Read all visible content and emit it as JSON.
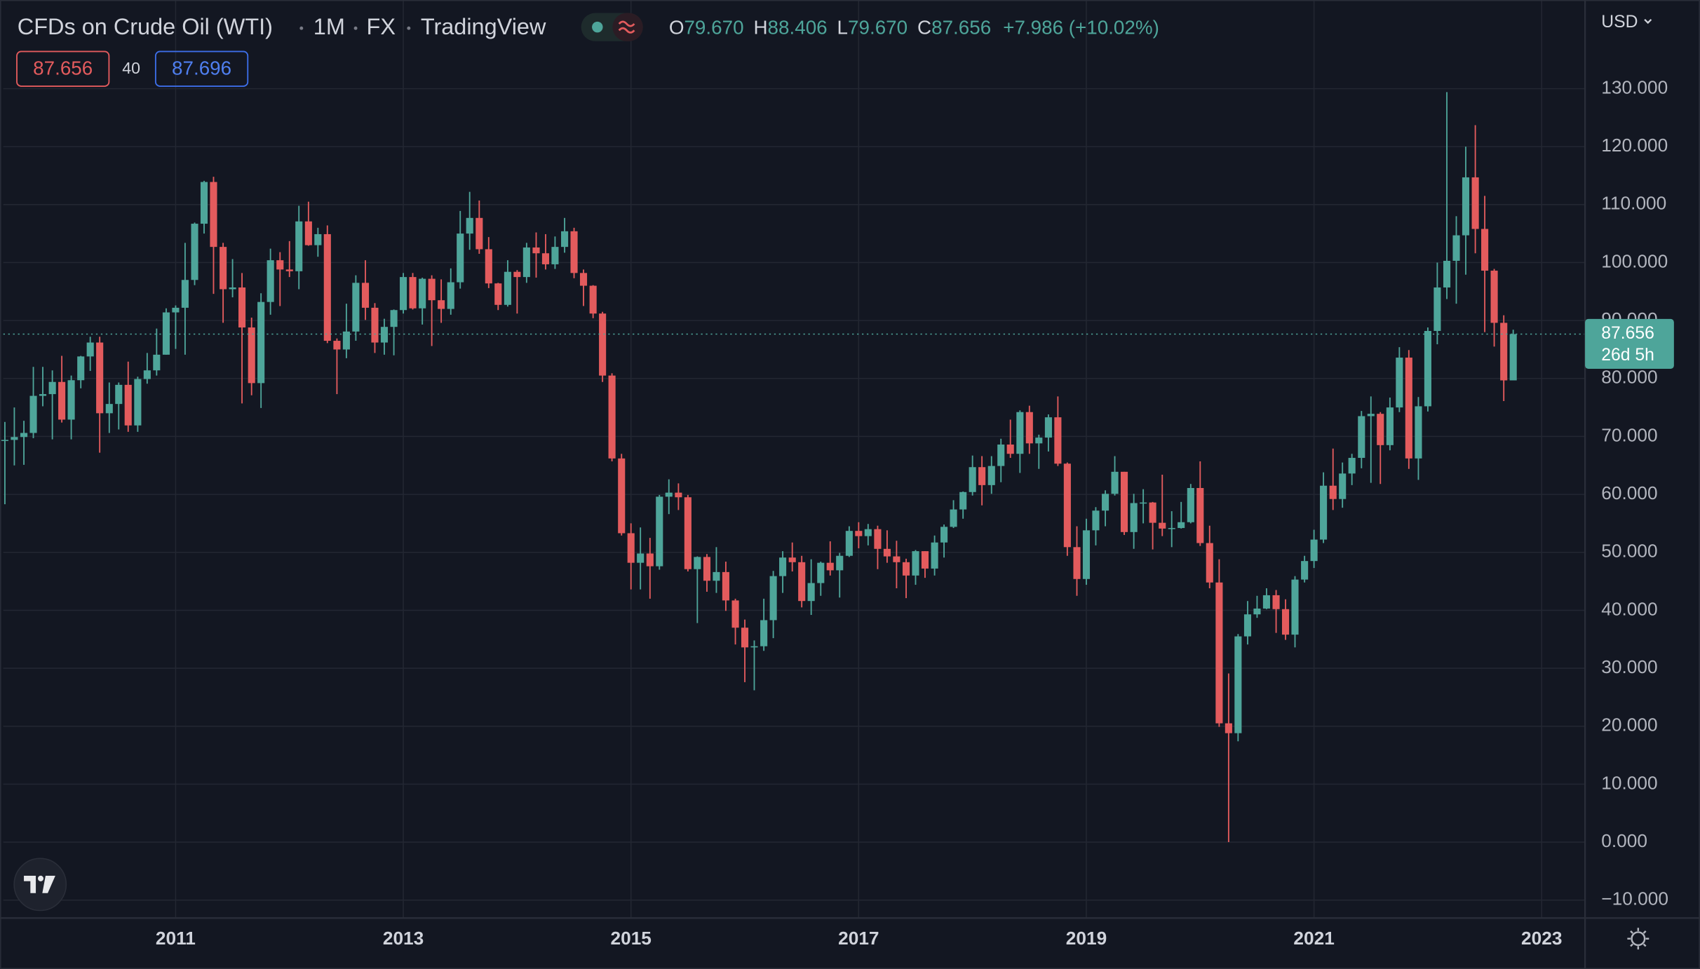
{
  "chart_data": {
    "type": "candlestick",
    "header": {
      "title": "CFDs on Crude Oil (WTI)",
      "interval": "1M",
      "exchange": "FX",
      "source": "TradingView",
      "ohlc": [
        {
          "label": "O",
          "value": "79.670"
        },
        {
          "label": "H",
          "value": "88.406"
        },
        {
          "label": "L",
          "value": "79.670"
        },
        {
          "label": "C",
          "value": "87.656"
        }
      ],
      "change": "+7.986 (+10.02%)"
    },
    "badges": {
      "sell": "87.656",
      "spread": "40",
      "buy": "87.696"
    },
    "currency": "USD",
    "countdown": "26d 5h",
    "up_color": "#4ea59a",
    "down_color": "#e35b5d",
    "grid": true,
    "xlim": [
      2009.486,
      2023.381
    ],
    "xticks": [
      2011,
      2013,
      2015,
      2017,
      2019,
      2021,
      2023
    ],
    "ylim": [
      -13.1,
      145.3
    ],
    "yticks": [
      {
        "value": -10,
        "label": "−10.000"
      },
      {
        "value": 0,
        "label": "0.000"
      },
      {
        "value": 10,
        "label": "10.000"
      },
      {
        "value": 20,
        "label": "20.000"
      },
      {
        "value": 30,
        "label": "30.000"
      },
      {
        "value": 40,
        "label": "40.000"
      },
      {
        "value": 50,
        "label": "50.000"
      },
      {
        "value": 60,
        "label": "60.000"
      },
      {
        "value": 70,
        "label": "70.000"
      },
      {
        "value": 80,
        "label": "80.000"
      },
      {
        "value": 90,
        "label": "90.000"
      },
      {
        "value": 100,
        "label": "100.000"
      },
      {
        "value": 110,
        "label": "110.000"
      },
      {
        "value": 120,
        "label": "120.000"
      },
      {
        "value": 130,
        "label": "130.000"
      }
    ],
    "x": [
      2009.5,
      2009.583,
      2009.667,
      2009.75,
      2009.833,
      2009.917,
      2010,
      2010.083,
      2010.167,
      2010.25,
      2010.333,
      2010.417,
      2010.5,
      2010.583,
      2010.667,
      2010.75,
      2010.833,
      2010.917,
      2011,
      2011.083,
      2011.167,
      2011.25,
      2011.333,
      2011.417,
      2011.5,
      2011.583,
      2011.667,
      2011.75,
      2011.833,
      2011.917,
      2012,
      2012.083,
      2012.167,
      2012.25,
      2012.333,
      2012.417,
      2012.5,
      2012.583,
      2012.667,
      2012.75,
      2012.833,
      2012.917,
      2013,
      2013.083,
      2013.167,
      2013.25,
      2013.333,
      2013.417,
      2013.5,
      2013.583,
      2013.667,
      2013.75,
      2013.833,
      2013.917,
      2014,
      2014.083,
      2014.167,
      2014.25,
      2014.333,
      2014.417,
      2014.5,
      2014.583,
      2014.667,
      2014.75,
      2014.833,
      2014.917,
      2015,
      2015.083,
      2015.167,
      2015.25,
      2015.333,
      2015.417,
      2015.5,
      2015.583,
      2015.667,
      2015.75,
      2015.833,
      2015.917,
      2016,
      2016.083,
      2016.167,
      2016.25,
      2016.333,
      2016.417,
      2016.5,
      2016.583,
      2016.667,
      2016.75,
      2016.833,
      2016.917,
      2017,
      2017.083,
      2017.167,
      2017.25,
      2017.333,
      2017.417,
      2017.5,
      2017.583,
      2017.667,
      2017.75,
      2017.833,
      2017.917,
      2018,
      2018.083,
      2018.167,
      2018.25,
      2018.333,
      2018.417,
      2018.5,
      2018.583,
      2018.667,
      2018.75,
      2018.833,
      2018.917,
      2019,
      2019.083,
      2019.167,
      2019.25,
      2019.333,
      2019.417,
      2019.5,
      2019.583,
      2019.667,
      2019.75,
      2019.833,
      2019.917,
      2020,
      2020.083,
      2020.167,
      2020.25,
      2020.333,
      2020.417,
      2020.5,
      2020.583,
      2020.667,
      2020.75,
      2020.833,
      2020.917,
      2021,
      2021.083,
      2021.167,
      2021.25,
      2021.333,
      2021.417,
      2021.5,
      2021.583,
      2021.667,
      2021.75,
      2021.833,
      2021.917,
      2022,
      2022.083,
      2022.167,
      2022.25,
      2022.333,
      2022.417,
      2022.5,
      2022.583,
      2022.667,
      2022.75
    ],
    "open": [
      69.3,
      69.4,
      69.9,
      70.6,
      77.0,
      77.3,
      79.4,
      72.9,
      79.7,
      83.8,
      86.2,
      74.0,
      75.6,
      78.9,
      71.9,
      79.9,
      81.4,
      84.1,
      91.4,
      92.2,
      97.0,
      106.7,
      113.9,
      102.7,
      95.4,
      95.7,
      88.8,
      79.2,
      93.2,
      100.4,
      98.8,
      98.5,
      107.1,
      103.0,
      104.9,
      86.5,
      85.0,
      88.1,
      96.5,
      92.2,
      86.2,
      88.9,
      91.8,
      97.5,
      92.1,
      97.2,
      93.5,
      92.0,
      96.6,
      105.0,
      107.7,
      102.3,
      96.4,
      92.7,
      98.4,
      97.5,
      102.6,
      101.6,
      99.7,
      102.7,
      105.4,
      98.2,
      96.0,
      91.2,
      80.5,
      66.2,
      53.3,
      48.2,
      49.8,
      47.6,
      59.6,
      60.3,
      59.5,
      47.1,
      49.2,
      45.1,
      46.6,
      41.7,
      37.0,
      33.6,
      33.8,
      38.3,
      45.9,
      49.1,
      48.3,
      41.6,
      44.7,
      48.2,
      46.9,
      49.4,
      53.7,
      52.8,
      54.0,
      50.6,
      49.3,
      48.3,
      46.0,
      50.2,
      47.2,
      51.7,
      54.4,
      57.4,
      60.4,
      64.7,
      61.6,
      64.9,
      68.6,
      67.0,
      74.2,
      68.8,
      69.8,
      73.3,
      65.3,
      50.9,
      45.4,
      53.8,
      57.2,
      60.1,
      63.9,
      53.5,
      58.5,
      58.6,
      55.1,
      54.1,
      54.2,
      55.2,
      61.1,
      51.6,
      44.8,
      20.5,
      18.8,
      35.5,
      39.3,
      40.3,
      42.6,
      40.2,
      35.8,
      45.3,
      48.5,
      52.2,
      61.5,
      59.2,
      63.6,
      66.3,
      73.5,
      73.9,
      68.5,
      75.0,
      83.6,
      66.2,
      75.2,
      88.2,
      95.7,
      100.3,
      104.7,
      114.7,
      105.8,
      98.6,
      89.6,
      79.67
    ],
    "high": [
      72.5,
      75.0,
      72.7,
      82.0,
      82.0,
      81.4,
      83.9,
      80.5,
      83.9,
      87.2,
      87.2,
      79.3,
      79.3,
      82.9,
      80.3,
      84.4,
      88.6,
      92.1,
      92.6,
      103.4,
      106.9,
      114.1,
      114.8,
      103.4,
      100.6,
      98.2,
      90.5,
      94.7,
      102.4,
      101.8,
      103.7,
      109.8,
      110.5,
      106.0,
      106.4,
      86.9,
      92.9,
      97.8,
      100.4,
      93.0,
      90.3,
      91.9,
      98.2,
      98.2,
      97.4,
      97.8,
      97.1,
      99.0,
      108.9,
      112.2,
      110.7,
      104.4,
      96.5,
      100.4,
      98.7,
      103.4,
      105.2,
      104.9,
      104.5,
      107.7,
      106.0,
      98.8,
      96.1,
      91.5,
      80.9,
      67.0,
      55.0,
      54.3,
      52.5,
      59.9,
      62.6,
      61.9,
      59.9,
      49.3,
      49.7,
      50.9,
      48.4,
      42.0,
      38.4,
      34.8,
      42.0,
      46.8,
      50.2,
      51.7,
      49.4,
      48.8,
      48.4,
      51.9,
      49.9,
      54.5,
      55.2,
      54.9,
      54.6,
      53.8,
      52.0,
      48.9,
      50.4,
      50.2,
      52.9,
      54.8,
      59.0,
      60.5,
      66.7,
      66.6,
      66.6,
      69.6,
      72.9,
      74.5,
      75.3,
      70.3,
      73.8,
      76.9,
      65.5,
      54.5,
      55.8,
      57.8,
      60.7,
      66.6,
      63.9,
      60.1,
      60.9,
      58.7,
      63.4,
      57.1,
      58.7,
      61.8,
      65.7,
      54.6,
      48.8,
      29.1,
      35.9,
      41.6,
      42.5,
      43.8,
      43.5,
      41.9,
      45.9,
      49.4,
      53.9,
      63.8,
      67.9,
      65.5,
      67.0,
      74.4,
      76.9,
      74.2,
      76.7,
      85.4,
      84.9,
      76.8,
      88.8,
      100.0,
      129.4,
      108.0,
      120.0,
      123.7,
      111.5,
      98.9,
      90.9,
      88.406
    ],
    "low": [
      58.3,
      65.0,
      65.1,
      69.7,
      75.2,
      69.5,
      72.4,
      69.5,
      78.3,
      81.3,
      67.2,
      70.6,
      71.2,
      70.8,
      70.8,
      79.1,
      80.5,
      84.1,
      85.1,
      84.1,
      96.1,
      105.0,
      94.6,
      89.6,
      94.0,
      75.7,
      77.1,
      74.9,
      91.0,
      92.5,
      97.5,
      95.4,
      102.9,
      101.0,
      86.1,
      77.3,
      83.5,
      86.5,
      90.1,
      84.4,
      84.1,
      84.0,
      91.2,
      91.9,
      89.3,
      85.6,
      89.6,
      91.0,
      95.5,
      102.2,
      101.5,
      95.6,
      91.8,
      92.4,
      91.2,
      96.5,
      97.4,
      98.8,
      98.9,
      101.7,
      97.3,
      92.5,
      90.4,
      79.4,
      65.7,
      52.9,
      43.6,
      43.6,
      42.0,
      47.0,
      56.6,
      57.3,
      46.7,
      37.8,
      43.2,
      43.0,
      39.9,
      34.1,
      27.6,
      26.2,
      33.0,
      35.2,
      43.0,
      46.7,
      40.5,
      39.2,
      42.5,
      46.0,
      42.2,
      49.2,
      50.7,
      51.2,
      47.1,
      48.2,
      43.8,
      42.1,
      44.4,
      45.6,
      46.0,
      49.1,
      54.2,
      55.8,
      59.8,
      58.1,
      60.1,
      62.1,
      66.3,
      63.7,
      67.0,
      64.4,
      67.4,
      64.9,
      49.4,
      42.5,
      44.4,
      51.2,
      54.5,
      59.8,
      53.0,
      50.6,
      55.0,
      50.5,
      52.8,
      50.9,
      54.1,
      55.0,
      51.1,
      43.8,
      19.9,
      0.0,
      17.4,
      34.1,
      38.7,
      40.2,
      36.1,
      34.9,
      33.6,
      44.8,
      47.3,
      51.6,
      57.3,
      57.7,
      61.6,
      64.5,
      62.0,
      61.8,
      67.6,
      74.2,
      64.4,
      62.5,
      74.3,
      85.9,
      93.7,
      92.9,
      97.9,
      101.6,
      88.0,
      85.5,
      76.1,
      79.67
    ],
    "close": [
      69.4,
      69.9,
      70.6,
      77.0,
      77.3,
      79.4,
      72.9,
      79.7,
      83.8,
      86.2,
      74.0,
      75.6,
      78.9,
      71.9,
      79.9,
      81.4,
      84.1,
      91.4,
      92.2,
      97.0,
      106.7,
      113.9,
      102.7,
      95.4,
      95.7,
      88.8,
      79.2,
      93.2,
      100.4,
      98.8,
      98.5,
      107.1,
      103.0,
      104.9,
      86.5,
      85.0,
      88.1,
      96.5,
      92.2,
      86.2,
      88.9,
      91.8,
      97.5,
      92.1,
      97.2,
      93.5,
      92.0,
      96.6,
      105.0,
      107.7,
      102.3,
      96.4,
      92.7,
      98.4,
      97.5,
      102.6,
      101.6,
      99.7,
      102.7,
      105.4,
      98.2,
      96.0,
      91.2,
      80.5,
      66.2,
      53.3,
      48.2,
      49.8,
      47.6,
      59.6,
      60.3,
      59.5,
      47.1,
      49.2,
      45.1,
      46.6,
      41.7,
      37.0,
      33.6,
      33.8,
      38.3,
      45.9,
      49.1,
      48.3,
      41.6,
      44.7,
      48.2,
      46.9,
      49.4,
      53.7,
      52.8,
      54.0,
      50.6,
      49.3,
      48.3,
      46.0,
      50.2,
      47.2,
      51.7,
      54.4,
      57.4,
      60.4,
      64.7,
      61.6,
      64.9,
      68.6,
      67.0,
      74.2,
      68.8,
      69.8,
      73.3,
      65.3,
      50.9,
      45.4,
      53.8,
      57.2,
      60.1,
      63.9,
      53.5,
      58.5,
      58.6,
      55.1,
      54.1,
      54.2,
      55.2,
      61.1,
      51.6,
      44.8,
      20.5,
      18.8,
      35.5,
      39.3,
      40.3,
      42.6,
      40.2,
      35.8,
      45.3,
      48.5,
      52.2,
      61.5,
      59.2,
      63.6,
      66.3,
      73.5,
      73.9,
      68.5,
      75.0,
      83.6,
      66.2,
      75.2,
      88.2,
      95.7,
      100.3,
      104.7,
      114.7,
      105.8,
      98.6,
      89.6,
      79.67,
      87.656
    ]
  }
}
